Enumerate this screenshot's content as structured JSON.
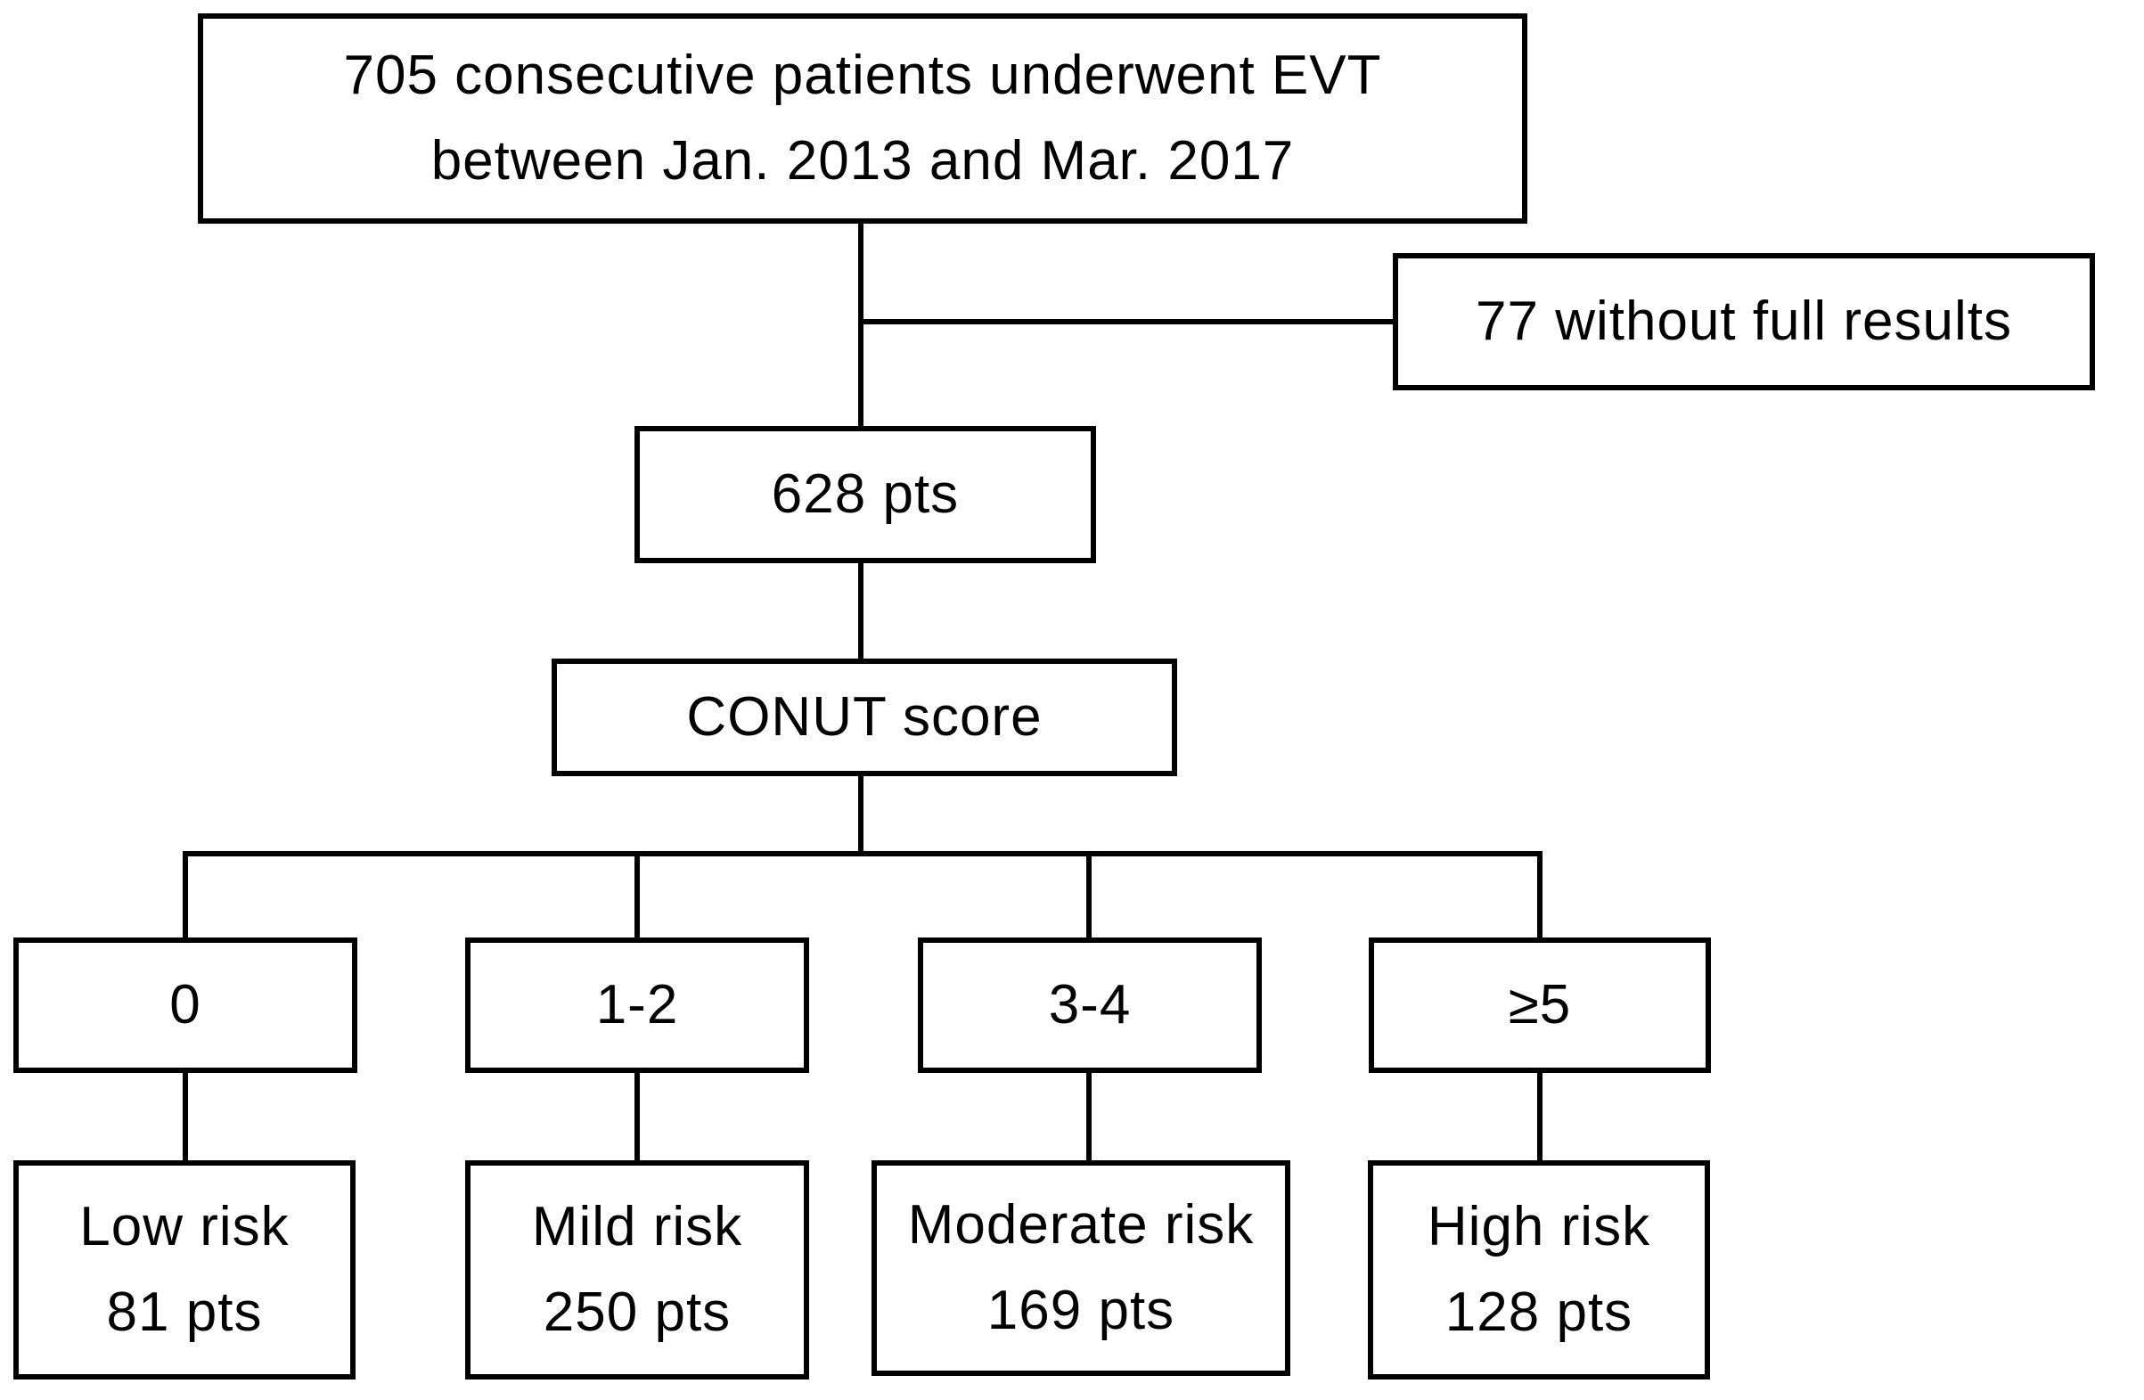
{
  "diagram": {
    "type": "patient-flowchart",
    "background_color": "#ffffff",
    "stroke_color": "#000000",
    "nodes": {
      "enrollment": {
        "line1": "705 consecutive patients underwent EVT",
        "line2": "between Jan. 2013 and Mar. 2017"
      },
      "excluded": {
        "label": "77 without full results"
      },
      "included": {
        "label": "628 pts"
      },
      "assessment": {
        "label": "CONUT score"
      },
      "score_0": {
        "label": "0"
      },
      "score_1_2": {
        "label": "1-2"
      },
      "score_3_4": {
        "label": "3-4"
      },
      "score_ge_5": {
        "label": "≥5"
      },
      "low_risk": {
        "line1": "Low risk",
        "line2": "81 pts"
      },
      "mild_risk": {
        "line1": "Mild risk",
        "line2": "250 pts"
      },
      "moderate_risk": {
        "line1": "Moderate risk",
        "line2": "169 pts"
      },
      "high_risk": {
        "line1": "High risk",
        "line2": "128 pts"
      }
    }
  }
}
